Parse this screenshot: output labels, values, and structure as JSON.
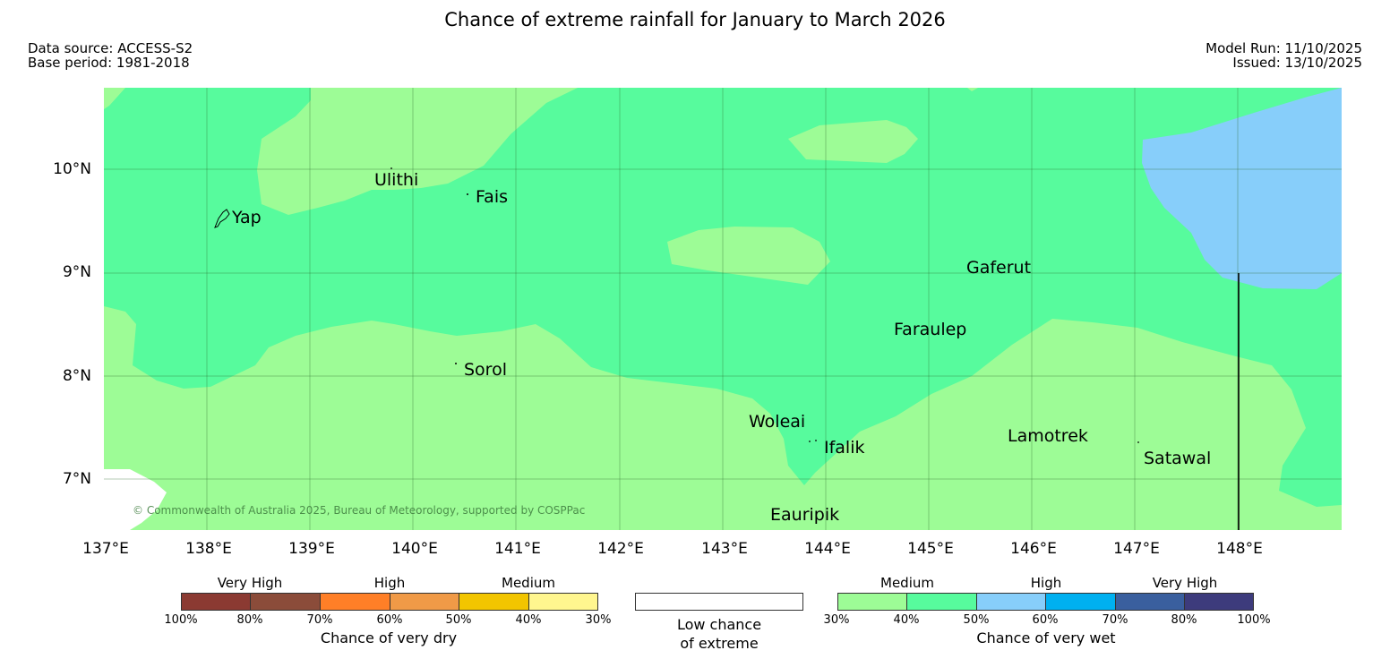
{
  "header": {
    "title": "Chance of extreme rainfall for January to March 2026",
    "data_source": "Data source: ACCESS-S2",
    "base_period": "Base period: 1981-2018",
    "model_run": "Model Run: 11/10/2025",
    "issued": "Issued: 13/10/2025"
  },
  "map": {
    "lat_range": [
      6.5,
      10.8
    ],
    "lon_range": [
      137,
      149
    ],
    "lat_labels": [
      "10°N",
      "9°N",
      "8°N",
      "7°N"
    ],
    "lon_labels": [
      "137°E",
      "138°E",
      "139°E",
      "140°E",
      "141°E",
      "142°E",
      "143°E",
      "144°E",
      "145°E",
      "146°E",
      "147°E",
      "148°E"
    ],
    "places": [
      "Yap",
      "Ulithi",
      "Fais",
      "Gaferut",
      "Faraulep",
      "Sorol",
      "Woleai",
      "Ifalik",
      "Lamotrek",
      "Satawal",
      "Eauripik"
    ],
    "copyright": "© Commonwealth of Australia 2025, Bureau of Meteorology, supported by COSPPac",
    "colors": {
      "wet_30_40": "#9dfc96",
      "wet_40_50": "#57fb9d",
      "wet_50_60": "#87cefa",
      "low_chance": "#ffffff"
    }
  },
  "legend": {
    "dry": {
      "groups": [
        "Very High",
        "High",
        "Medium"
      ],
      "ticks": [
        "100%",
        "80%",
        "70%",
        "60%",
        "50%",
        "40%",
        "30%"
      ],
      "colors": [
        "#8b3a32",
        "#8b4c3a",
        "#ff7f27",
        "#f09a47",
        "#f2c500",
        "#fff68f"
      ],
      "title": "Chance of very dry"
    },
    "low": {
      "title_line1": "Low chance",
      "title_line2": "of extreme",
      "color": "#ffffff"
    },
    "wet": {
      "groups": [
        "Medium",
        "High",
        "Very High"
      ],
      "ticks": [
        "30%",
        "40%",
        "50%",
        "60%",
        "70%",
        "80%",
        "100%"
      ],
      "colors": [
        "#9dfc96",
        "#57fb9d",
        "#87cefa",
        "#00b0f0",
        "#3a5f9e",
        "#3d3b7c"
      ],
      "title": "Chance of very wet"
    }
  }
}
